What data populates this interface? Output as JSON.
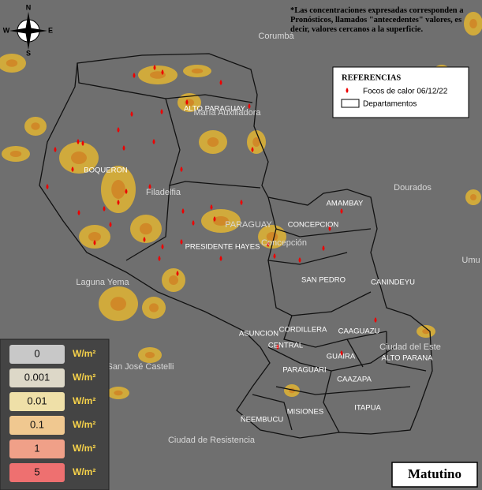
{
  "compass": [
    "N",
    "S",
    "E",
    "W"
  ],
  "note": "*Las concentraciones expresadas corresponden a Pronósticos, llamados \"antecedentes\" valores, es decir, valores cercanos a la superficie.",
  "legend": {
    "title": "REFERENCIAS",
    "items": [
      "Focos de calor 06/12/22",
      "Departamentos"
    ]
  },
  "departments": [
    "ALTO PARAGUAY",
    "BOQUERON",
    "PRESIDENTE HAYES",
    "AMAMBAY",
    "CONCEPCION",
    "SAN PEDRO",
    "CANINDEYU",
    "CORDILLERA",
    "ASUNCION",
    "CAAGUAZU",
    "CENTRAL",
    "GUAIRA",
    "ALTO PARANA",
    "PARAGUARI",
    "CAAZAPA",
    "MISIONES",
    "ITAPUA",
    "ÑEEMBUCU"
  ],
  "places": [
    "Corumbá",
    "Dourados",
    "Ciudad del Este",
    "Umu",
    "Filadelfia",
    "Laguna Yema",
    "San José Castelli",
    "Ciudad de Resistencia",
    "María Auxiliadora",
    "Concepción",
    "PARAGUAY"
  ],
  "scale": [
    {
      "value": "0",
      "unit": "W/m²"
    },
    {
      "value": "0.001",
      "unit": "W/m²"
    },
    {
      "value": "0.01",
      "unit": "W/m²"
    },
    {
      "value": "0.1",
      "unit": "W/m²"
    },
    {
      "value": "1",
      "unit": "W/m²"
    },
    {
      "value": "5",
      "unit": "W/m²"
    }
  ],
  "period": "Matutino"
}
